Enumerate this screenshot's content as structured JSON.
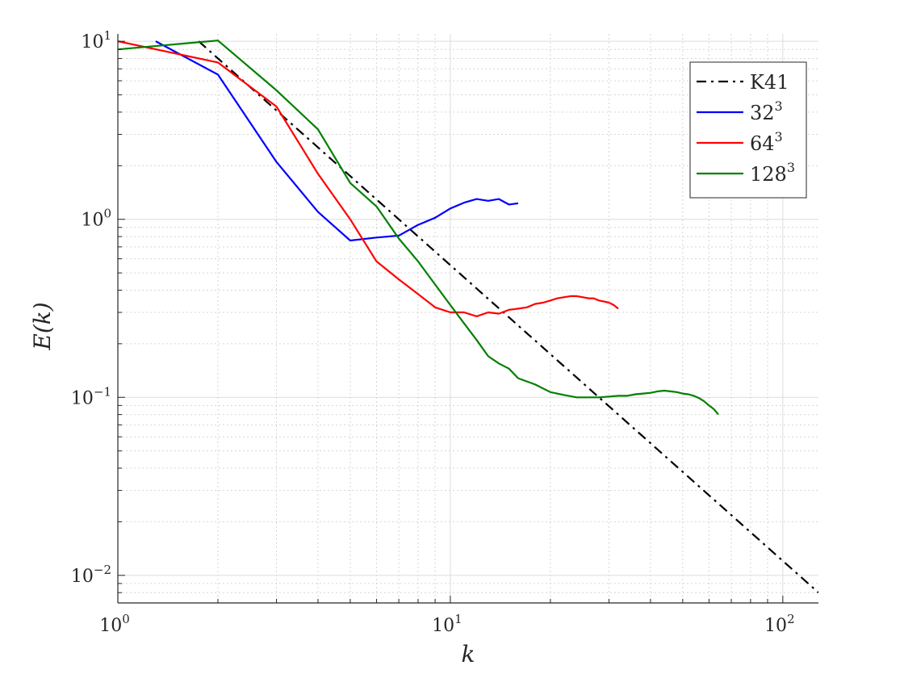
{
  "chart_data": {
    "type": "line",
    "title": "",
    "xlabel": "k",
    "ylabel": "E(k)",
    "xscale": "log",
    "yscale": "log",
    "xlim": [
      1,
      128
    ],
    "ylim": [
      0.007,
      11
    ],
    "grid": true,
    "minor_grid": true,
    "legend_position": "top-right",
    "x_ticks": [
      {
        "value": 1,
        "base": "10",
        "exp": "0"
      },
      {
        "value": 10,
        "base": "10",
        "exp": "1"
      },
      {
        "value": 100,
        "base": "10",
        "exp": "2"
      }
    ],
    "y_ticks": [
      {
        "value": 0.01,
        "base": "10",
        "exp": "−2"
      },
      {
        "value": 0.1,
        "base": "10",
        "exp": "−1"
      },
      {
        "value": 1,
        "base": "10",
        "exp": "0"
      },
      {
        "value": 10,
        "base": "10",
        "exp": "1"
      }
    ],
    "series": [
      {
        "name": "K41",
        "label_base": "K41",
        "label_exp": "",
        "color": "#000000",
        "dash": "dashdot",
        "x": [
          1.75,
          128
        ],
        "y": [
          10.0,
          0.008
        ]
      },
      {
        "name": "32³",
        "label_base": "32",
        "label_exp": "3",
        "color": "#0000ff",
        "dash": "solid",
        "x": [
          1.3,
          2,
          3,
          4,
          5,
          6,
          7,
          8,
          9,
          10,
          11,
          12,
          13,
          14,
          15,
          16
        ],
        "y": [
          10.0,
          6.5,
          2.1,
          1.1,
          0.76,
          0.79,
          0.81,
          0.93,
          1.02,
          1.15,
          1.24,
          1.3,
          1.27,
          1.3,
          1.21,
          1.23
        ]
      },
      {
        "name": "64³",
        "label_base": "64",
        "label_exp": "3",
        "color": "#ff0000",
        "dash": "solid",
        "x": [
          1,
          2,
          3,
          4,
          5,
          6,
          7,
          8,
          9,
          10,
          11,
          12,
          13,
          14,
          15,
          16,
          17,
          18,
          19,
          20,
          21,
          22,
          23,
          24,
          25,
          26,
          27,
          28,
          29,
          30,
          31,
          32
        ],
        "y": [
          10.0,
          7.6,
          4.3,
          1.8,
          1.0,
          0.58,
          0.46,
          0.38,
          0.32,
          0.3,
          0.3,
          0.285,
          0.3,
          0.295,
          0.31,
          0.315,
          0.32,
          0.335,
          0.34,
          0.35,
          0.36,
          0.365,
          0.37,
          0.37,
          0.365,
          0.36,
          0.36,
          0.35,
          0.345,
          0.34,
          0.33,
          0.315
        ]
      },
      {
        "name": "128³",
        "label_base": "128",
        "label_exp": "3",
        "color": "#008000",
        "dash": "solid",
        "x": [
          1,
          2,
          3,
          4,
          5,
          6,
          7,
          8,
          9,
          10,
          11,
          12,
          13,
          14,
          15,
          16,
          18,
          20,
          22,
          24,
          26,
          28,
          30,
          32,
          34,
          36,
          38,
          40,
          42,
          44,
          46,
          48,
          50,
          52,
          54,
          56,
          58,
          60,
          62,
          64
        ],
        "y": [
          9.0,
          10.1,
          5.3,
          3.2,
          1.6,
          1.18,
          0.78,
          0.58,
          0.43,
          0.33,
          0.26,
          0.21,
          0.17,
          0.155,
          0.145,
          0.128,
          0.118,
          0.107,
          0.103,
          0.1,
          0.1,
          0.1,
          0.101,
          0.102,
          0.102,
          0.104,
          0.105,
          0.106,
          0.108,
          0.109,
          0.108,
          0.107,
          0.105,
          0.104,
          0.102,
          0.099,
          0.095,
          0.09,
          0.086,
          0.08
        ]
      }
    ]
  }
}
